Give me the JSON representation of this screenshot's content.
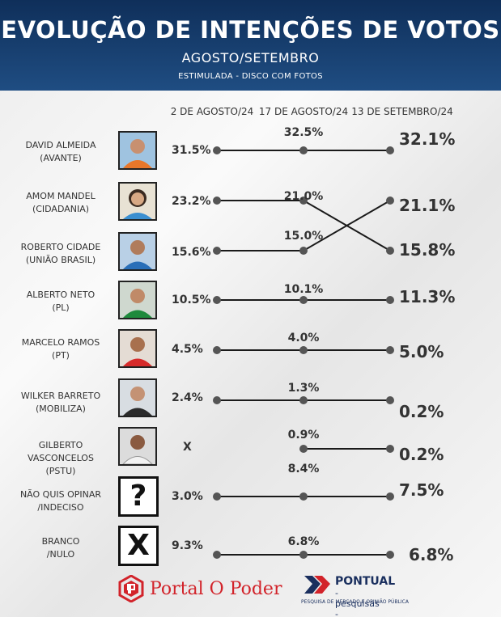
{
  "header": {
    "title": "EVOLUÇÃO DE INTENÇÕES DE VOTOS",
    "subtitle": "AGOSTO/SETEMBRO",
    "note": "ESTIMULADA - DISCO COM FOTOS"
  },
  "chart_data": {
    "type": "line",
    "x": [
      "2 DE AGOSTO/24",
      "17 DE AGOSTO/24",
      "13 DE SETEMBRO/24"
    ],
    "ylim": [
      0,
      35
    ],
    "series": [
      {
        "name": "DAVID ALMEIDA",
        "party": "(AVANTE)",
        "values": [
          31.5,
          32.5,
          32.1
        ],
        "labels": [
          "31.5%",
          "32.5%",
          "32.1%"
        ]
      },
      {
        "name": "AMOM MANDEL",
        "party": "(CIDADANIA)",
        "values": [
          23.2,
          21.0,
          15.8
        ],
        "labels": [
          "23.2%",
          "21.0%",
          "15.8%"
        ]
      },
      {
        "name": "ROBERTO CIDADE",
        "party": "(UNIÃO BRASIL)",
        "values": [
          15.6,
          15.0,
          21.1
        ],
        "labels": [
          "15.6%",
          "15.0%",
          "21.1%"
        ]
      },
      {
        "name": "ALBERTO NETO",
        "party": "(PL)",
        "values": [
          10.5,
          10.1,
          11.3
        ],
        "labels": [
          "10.5%",
          "10.1%",
          "11.3%"
        ]
      },
      {
        "name": "MARCELO RAMOS",
        "party": "(PT)",
        "values": [
          4.5,
          4.0,
          5.0
        ],
        "labels": [
          "4.5%",
          "4.0%",
          "5.0%"
        ]
      },
      {
        "name": "WILKER BARRETO",
        "party": "(MOBILIZA)",
        "values": [
          2.4,
          1.3,
          0.2
        ],
        "labels": [
          "2.4%",
          "1.3%",
          "0.2%"
        ]
      },
      {
        "name": "GILBERTO VASCONCELOS",
        "party": "(PSTU)",
        "values": [
          null,
          0.9,
          0.2
        ],
        "labels": [
          "X",
          "0.9%",
          "0.2%"
        ]
      },
      {
        "name": "NÃO QUIS OPINAR",
        "party": "/INDECISO",
        "values": [
          3.0,
          8.4,
          7.5
        ],
        "labels": [
          "3.0%",
          "8.4%",
          "7.5%"
        ],
        "symbol": "?"
      },
      {
        "name": "BRANCO",
        "party": "/NULO",
        "values": [
          9.3,
          6.8,
          6.8
        ],
        "labels": [
          "9.3%",
          "6.8%",
          "6.8%"
        ],
        "symbol": "X"
      }
    ]
  },
  "footer": {
    "left_logo": "Portal O Poder",
    "right_logo": "PONTUAL",
    "right_sub": "- pesquisas -",
    "right_tagline": "PESQUISA DE MERCADO E OPINIÃO PÚBLICA"
  },
  "colors": {
    "header_bg": "#1f4d82",
    "line": "#1a1a1a",
    "marker": "#555555",
    "brand_red": "#d2232a",
    "brand_blue": "#1a2f5e"
  }
}
